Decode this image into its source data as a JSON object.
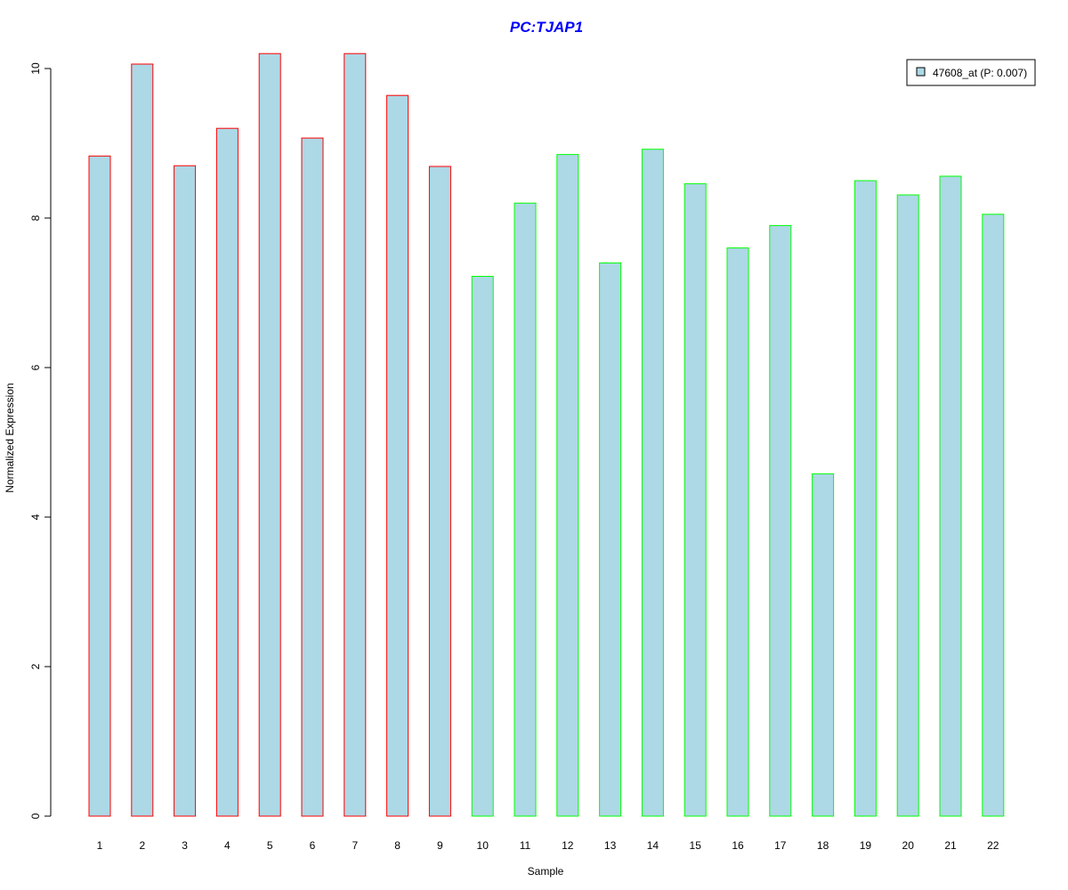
{
  "chart_data": {
    "type": "bar",
    "title": "PC:TJAP1",
    "xlabel": "Sample",
    "ylabel": "Normalized Expression",
    "ylim": [
      0,
      10.2
    ],
    "yticks": [
      0,
      2,
      4,
      6,
      8,
      10
    ],
    "grid": false,
    "legend_position": "top-right",
    "categories": [
      "1",
      "2",
      "3",
      "4",
      "5",
      "6",
      "7",
      "8",
      "9",
      "10",
      "11",
      "12",
      "13",
      "14",
      "15",
      "16",
      "17",
      "18",
      "19",
      "20",
      "21",
      "22"
    ],
    "series": [
      {
        "name": "47608_at (P: 0.007)",
        "values": [
          8.83,
          10.06,
          8.7,
          9.2,
          10.2,
          9.07,
          10.2,
          9.64,
          8.69,
          7.22,
          8.2,
          8.85,
          7.4,
          8.92,
          8.46,
          7.6,
          7.9,
          4.58,
          8.5,
          8.31,
          8.56,
          8.05
        ]
      }
    ],
    "groups": [
      {
        "samples": [
          1,
          9
        ],
        "border_color": "#ff0000"
      },
      {
        "samples": [
          10,
          22
        ],
        "border_color": "#00ff00"
      }
    ]
  },
  "colors": {
    "title": "#0000ff",
    "bar_fill": "#add8e6",
    "group1_border": "#ff0000",
    "group2_border": "#00ff00",
    "axis": "#000000",
    "legend_swatch_border": "#000000"
  }
}
